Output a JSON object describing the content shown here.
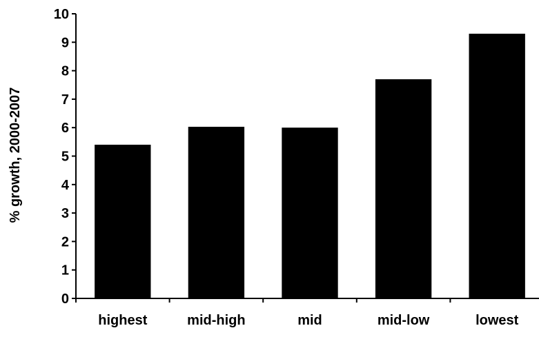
{
  "chart_data": {
    "type": "bar",
    "title": "",
    "xlabel": "",
    "ylabel": "% growth, 2000-2007",
    "categories": [
      "highest",
      "mid-high",
      "mid",
      "mid-low",
      "lowest"
    ],
    "values": [
      5.4,
      6.03,
      6.0,
      7.7,
      9.3
    ],
    "ylim": [
      0,
      10
    ],
    "yticks": [
      0,
      1,
      2,
      3,
      4,
      5,
      6,
      7,
      8,
      9,
      10
    ],
    "grid": false,
    "legend": "none",
    "colors": {
      "bar": "#000000",
      "axis": "#000000",
      "background": "#ffffff"
    }
  }
}
